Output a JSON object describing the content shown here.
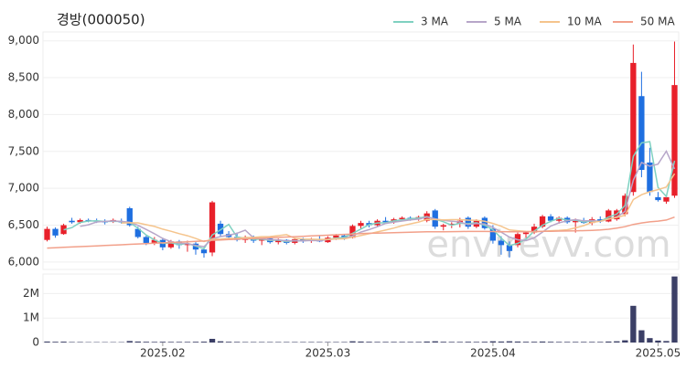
{
  "chart_data": {
    "type": "candlestick",
    "title": "경방(000050)",
    "watermark": "envirevv.com",
    "categories": [
      null,
      null,
      null,
      null,
      null,
      null,
      null,
      null,
      null,
      null,
      null,
      null,
      null,
      null,
      "2025.02",
      null,
      null,
      null,
      null,
      null,
      null,
      null,
      null,
      null,
      null,
      null,
      null,
      null,
      null,
      null,
      null,
      null,
      null,
      null,
      "2025.03",
      null,
      null,
      null,
      null,
      null,
      null,
      null,
      null,
      null,
      null,
      null,
      null,
      null,
      null,
      null,
      null,
      null,
      null,
      null,
      "2025.04",
      null,
      null,
      null,
      null,
      null,
      null,
      null,
      null,
      null,
      null,
      null,
      null,
      null,
      null,
      null,
      null,
      null,
      null,
      null,
      "2025.05",
      null,
      null
    ],
    "open": [
      6300,
      6450,
      6380,
      6560,
      6540,
      6570,
      6560,
      6550,
      6560,
      6550,
      6730,
      6450,
      6340,
      6260,
      6300,
      6200,
      6280,
      6230,
      6250,
      6170,
      6130,
      6520,
      6380,
      6340,
      6300,
      6330,
      6290,
      6320,
      6270,
      6300,
      6260,
      6310,
      6290,
      6310,
      6270,
      6330,
      6360,
      6330,
      6490,
      6530,
      6500,
      6560,
      6540,
      6580,
      6600,
      6580,
      6560,
      6700,
      6480,
      6500,
      6520,
      6600,
      6480,
      6600,
      6450,
      6290,
      6230,
      6230,
      6380,
      6400,
      6480,
      6620,
      6560,
      6600,
      6540,
      6560,
      6530,
      6580,
      6550,
      6580,
      6650,
      6950,
      8250,
      7350,
      6880,
      6820,
      6900
    ],
    "high": [
      6480,
      6470,
      6520,
      6600,
      6590,
      6590,
      6590,
      6580,
      6590,
      6590,
      6750,
      6480,
      6360,
      6340,
      6330,
      6300,
      6300,
      6290,
      6270,
      6200,
      6830,
      6560,
      6420,
      6400,
      6360,
      6360,
      6330,
      6350,
      6320,
      6310,
      6330,
      6330,
      6330,
      6360,
      6350,
      6380,
      6380,
      6510,
      6560,
      6560,
      6580,
      6610,
      6600,
      6620,
      6620,
      6630,
      6690,
      6720,
      6520,
      6540,
      6600,
      6620,
      6580,
      6620,
      6500,
      6350,
      6280,
      6400,
      6420,
      6520,
      6640,
      6650,
      6620,
      6620,
      6590,
      6600,
      6610,
      6620,
      6720,
      6720,
      6930,
      8950,
      8580,
      7550,
      6950,
      6900,
      8990
    ],
    "low": [
      6280,
      6330,
      6370,
      6520,
      6520,
      6540,
      6530,
      6510,
      6530,
      6520,
      6480,
      6320,
      6230,
      6230,
      6160,
      6180,
      6180,
      6140,
      6100,
      6060,
      6080,
      6350,
      6300,
      6280,
      6260,
      6260,
      6230,
      6250,
      6240,
      6240,
      6240,
      6260,
      6260,
      6270,
      6260,
      6300,
      6300,
      6320,
      6450,
      6470,
      6480,
      6530,
      6520,
      6550,
      6560,
      6560,
      6540,
      6450,
      6430,
      6460,
      6470,
      6450,
      6460,
      6440,
      6250,
      6100,
      6060,
      6200,
      6330,
      6380,
      6460,
      6540,
      6520,
      6520,
      6400,
      6520,
      6500,
      6530,
      6540,
      6560,
      6620,
      6900,
      7150,
      6900,
      6820,
      6790,
      6870
    ],
    "close": [
      6450,
      6360,
      6500,
      6540,
      6570,
      6560,
      6550,
      6540,
      6570,
      6540,
      6500,
      6340,
      6260,
      6300,
      6200,
      6280,
      6230,
      6250,
      6170,
      6120,
      6810,
      6380,
      6340,
      6300,
      6330,
      6290,
      6320,
      6270,
      6300,
      6260,
      6310,
      6290,
      6310,
      6280,
      6330,
      6360,
      6320,
      6490,
      6530,
      6500,
      6560,
      6540,
      6580,
      6600,
      6580,
      6610,
      6660,
      6480,
      6500,
      6520,
      6560,
      6480,
      6560,
      6460,
      6290,
      6230,
      6150,
      6380,
      6400,
      6480,
      6620,
      6560,
      6600,
      6540,
      6560,
      6530,
      6580,
      6550,
      6700,
      6700,
      6900,
      8700,
      7250,
      6950,
      6840,
      6880,
      8400
    ],
    "up_color": "#e8202a",
    "down_color": "#1f6fe0",
    "ylim": [
      5900,
      9120
    ],
    "yticks": [
      {
        "value": 6000,
        "label": "6,000"
      },
      {
        "value": 6500,
        "label": "6,500"
      },
      {
        "value": 7000,
        "label": "7,000"
      },
      {
        "value": 7500,
        "label": "7,500"
      },
      {
        "value": 8000,
        "label": "8,000"
      },
      {
        "value": 8500,
        "label": "8,500"
      },
      {
        "value": 9000,
        "label": "9,000"
      }
    ],
    "grid": true,
    "series": [
      {
        "name": "3 MA",
        "color": "#7fd1c1",
        "values": [
          null,
          null,
          6437,
          6467,
          6537,
          6557,
          6560,
          6550,
          6553,
          6550,
          6537,
          6460,
          6367,
          6300,
          6253,
          6260,
          6237,
          6253,
          6217,
          6180,
          6367,
          6437,
          6510,
          6340,
          6323,
          6307,
          6313,
          6293,
          6297,
          6277,
          6290,
          6287,
          6303,
          6293,
          6307,
          6323,
          6337,
          6390,
          6447,
          6507,
          6530,
          6533,
          6560,
          6573,
          6587,
          6597,
          6617,
          6583,
          6547,
          6500,
          6527,
          6520,
          6533,
          6500,
          6437,
          6327,
          6223,
          6253,
          6310,
          6420,
          6500,
          6553,
          6593,
          6567,
          6567,
          6543,
          6557,
          6553,
          6610,
          6650,
          6767,
          7433,
          7617,
          7633,
          7013,
          6890,
          7373
        ]
      },
      {
        "name": "5 MA",
        "color": "#b7a6c9",
        "values": [
          null,
          null,
          null,
          null,
          6484,
          6506,
          6544,
          6552,
          6558,
          6552,
          6540,
          6498,
          6442,
          6384,
          6320,
          6276,
          6254,
          6252,
          6226,
          6210,
          6316,
          6346,
          6364,
          6390,
          6432,
          6328,
          6316,
          6302,
          6302,
          6288,
          6290,
          6286,
          6294,
          6290,
          6306,
          6314,
          6320,
          6356,
          6406,
          6440,
          6480,
          6524,
          6542,
          6556,
          6572,
          6582,
          6610,
          6586,
          6566,
          6554,
          6544,
          6508,
          6524,
          6516,
          6470,
          6406,
          6338,
          6302,
          6290,
          6328,
          6406,
          6488,
          6532,
          6560,
          6576,
          6558,
          6562,
          6552,
          6584,
          6612,
          6686,
          7110,
          7350,
          7300,
          7328,
          7504,
          7264
        ]
      },
      {
        "name": "10 MA",
        "color": "#f5c48c",
        "values": [
          null,
          null,
          null,
          null,
          null,
          null,
          null,
          null,
          null,
          6528,
          6533,
          6531,
          6507,
          6483,
          6446,
          6418,
          6386,
          6357,
          6320,
          6278,
          6309,
          6313,
          6321,
          6321,
          6334,
          6335,
          6344,
          6346,
          6358,
          6372,
          6322,
          6313,
          6310,
          6308,
          6308,
          6315,
          6315,
          6337,
          6360,
          6384,
          6409,
          6434,
          6461,
          6493,
          6518,
          6543,
          6577,
          6576,
          6573,
          6575,
          6575,
          6569,
          6567,
          6553,
          6524,
          6486,
          6435,
          6425,
          6415,
          6411,
          6417,
          6425,
          6429,
          6437,
          6464,
          6494,
          6537,
          6554,
          6584,
          6606,
          6634,
          6848,
          6913,
          6954,
          6982,
          7017,
          7199
        ]
      },
      {
        "name": "50 MA",
        "color": "#f2a08a",
        "values": [
          6190,
          6195,
          6200,
          6205,
          6210,
          6215,
          6220,
          6225,
          6230,
          6235,
          6240,
          6245,
          6250,
          6255,
          6260,
          6265,
          6270,
          6275,
          6280,
          6285,
          6295,
          6300,
          6305,
          6310,
          6315,
          6320,
          6325,
          6330,
          6335,
          6340,
          6345,
          6350,
          6355,
          6360,
          6365,
          6370,
          6375,
          6380,
          6385,
          6390,
          6393,
          6396,
          6399,
          6402,
          6405,
          6408,
          6410,
          6411,
          6412,
          6413,
          6414,
          6415,
          6415,
          6415,
          6414,
          6413,
          6412,
          6412,
          6413,
          6414,
          6416,
          6418,
          6420,
          6422,
          6424,
          6426,
          6430,
          6435,
          6445,
          6460,
          6480,
          6510,
          6530,
          6545,
          6555,
          6570,
          6610
        ]
      }
    ],
    "volume": {
      "color": "#3b3f66",
      "ylim": [
        0,
        2800000
      ],
      "yticks": [
        0,
        {
          "value": 1000000,
          "label": "1M"
        },
        {
          "value": 2000000,
          "label": "2M"
        }
      ],
      "values": [
        40000,
        30000,
        35000,
        20000,
        20000,
        15000,
        15000,
        15000,
        15000,
        15000,
        60000,
        40000,
        30000,
        25000,
        30000,
        25000,
        25000,
        25000,
        30000,
        35000,
        150000,
        50000,
        30000,
        25000,
        20000,
        20000,
        20000,
        20000,
        20000,
        20000,
        20000,
        20000,
        20000,
        20000,
        20000,
        20000,
        20000,
        50000,
        40000,
        30000,
        25000,
        25000,
        25000,
        25000,
        25000,
        25000,
        40000,
        50000,
        30000,
        25000,
        25000,
        30000,
        25000,
        30000,
        50000,
        40000,
        50000,
        40000,
        30000,
        30000,
        40000,
        30000,
        25000,
        25000,
        25000,
        25000,
        25000,
        25000,
        40000,
        50000,
        90000,
        1500000,
        500000,
        180000,
        80000,
        60000,
        2700000
      ]
    }
  }
}
